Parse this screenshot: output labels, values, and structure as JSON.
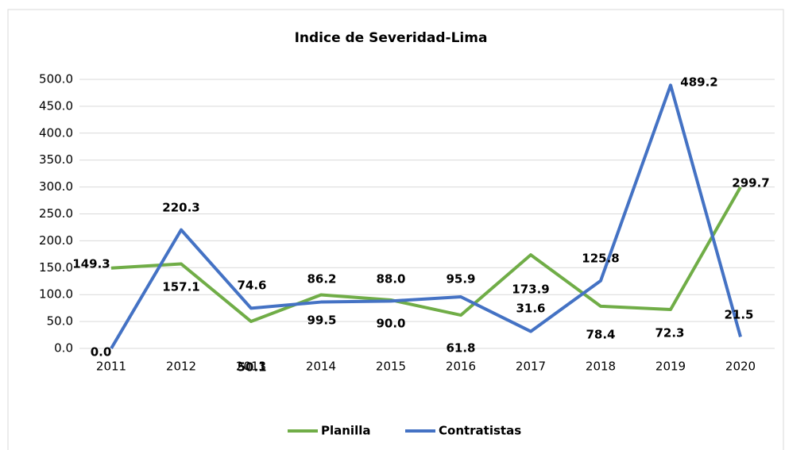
{
  "chart_data": {
    "type": "line",
    "title": "Indice de Severidad-Lima",
    "categories": [
      "2011",
      "2012",
      "2013",
      "2014",
      "2015",
      "2016",
      "2017",
      "2018",
      "2019",
      "2020"
    ],
    "series": [
      {
        "name": "Planilla",
        "color": "#70ad47",
        "values": [
          149.3,
          157.1,
          50.1,
          99.5,
          90.0,
          61.8,
          173.9,
          78.4,
          72.3,
          299.7
        ],
        "value_labels": [
          "149.3",
          "157.1",
          "50.1",
          "99.5",
          "90.0",
          "61.8",
          "173.9",
          "78.4",
          "72.3",
          "299.7"
        ]
      },
      {
        "name": "Contratistas",
        "color": "#4472c4",
        "values": [
          0.0,
          220.3,
          74.6,
          86.2,
          88.0,
          95.9,
          31.6,
          125.8,
          489.2,
          21.5
        ],
        "value_labels": [
          "0.0",
          "220.3",
          "74.6",
          "86.2",
          "88.0",
          "95.9",
          "31.6",
          "125.8",
          "489.2",
          "21.5"
        ]
      }
    ],
    "ylim": [
      0,
      500
    ],
    "yticks": [
      {
        "value": 0,
        "label": "0.0"
      },
      {
        "value": 50,
        "label": "50.0"
      },
      {
        "value": 100,
        "label": "100.0"
      },
      {
        "value": 150,
        "label": "150.0"
      },
      {
        "value": 200,
        "label": "200.0"
      },
      {
        "value": 250,
        "label": "250.0"
      },
      {
        "value": 300,
        "label": "300.0"
      },
      {
        "value": 350,
        "label": "350.0"
      },
      {
        "value": 400,
        "label": "400.0"
      },
      {
        "value": 450,
        "label": "450.0"
      },
      {
        "value": 500,
        "label": "500.0"
      }
    ],
    "grid": true,
    "legend": "bottom"
  }
}
